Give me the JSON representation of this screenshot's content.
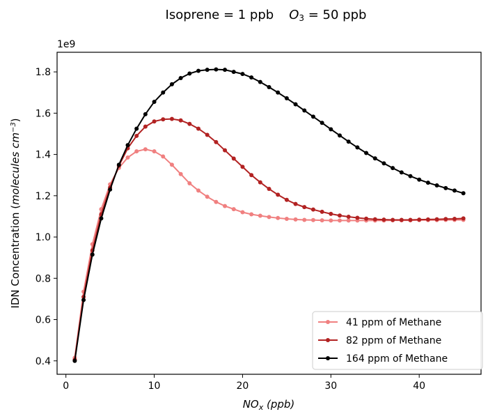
{
  "chart_data": {
    "type": "line",
    "title_parts": {
      "left": "Isoprene = 1 ppb",
      "o3_base": "O",
      "o3_sub": "3",
      "right": " = 50 ppb"
    },
    "xlabel_parts": {
      "base": "NO",
      "sub": "x",
      "rest": " (ppb)"
    },
    "ylabel_parts": {
      "plain": "IDN Concentration (",
      "italic": "molecules cm",
      "sup": "−3",
      "close": ")"
    },
    "y_multiplier_label": "1e9",
    "xlim": [
      -1,
      47
    ],
    "ylim": [
      0.335,
      1.895
    ],
    "x_ticks": [
      0,
      10,
      20,
      30,
      40
    ],
    "x_tick_labels": [
      "0",
      "10",
      "20",
      "30",
      "40"
    ],
    "y_ticks": [
      0.4,
      0.6,
      0.8,
      1.0,
      1.2,
      1.4,
      1.6,
      1.8
    ],
    "y_tick_labels": [
      "0.4",
      "0.6",
      "0.8",
      "1.0",
      "1.2",
      "1.4",
      "1.6",
      "1.8"
    ],
    "grid": false,
    "legend_position": "bottom-right",
    "x": [
      1,
      2,
      3,
      4,
      5,
      6,
      7,
      8,
      9,
      10,
      11,
      12,
      13,
      14,
      15,
      16,
      17,
      18,
      19,
      20,
      21,
      22,
      23,
      24,
      25,
      26,
      27,
      28,
      29,
      30,
      31,
      32,
      33,
      34,
      35,
      36,
      37,
      38,
      39,
      40,
      41,
      42,
      43,
      44,
      45
    ],
    "series": [
      {
        "name": "41 ppm of Methane",
        "color": "#f08080",
        "values": [
          0.415,
          0.735,
          0.965,
          1.135,
          1.255,
          1.335,
          1.385,
          1.415,
          1.425,
          1.415,
          1.39,
          1.35,
          1.305,
          1.26,
          1.225,
          1.195,
          1.17,
          1.15,
          1.135,
          1.12,
          1.11,
          1.103,
          1.097,
          1.092,
          1.088,
          1.085,
          1.083,
          1.082,
          1.081,
          1.08,
          1.08,
          1.08,
          1.08,
          1.08,
          1.08,
          1.08,
          1.081,
          1.081,
          1.081,
          1.082,
          1.082,
          1.082,
          1.083,
          1.083,
          1.083
        ]
      },
      {
        "name": "82 ppm of Methane",
        "color": "#b22222",
        "values": [
          0.405,
          0.71,
          0.935,
          1.11,
          1.24,
          1.345,
          1.43,
          1.49,
          1.535,
          1.56,
          1.57,
          1.572,
          1.565,
          1.548,
          1.525,
          1.495,
          1.46,
          1.42,
          1.38,
          1.34,
          1.3,
          1.265,
          1.233,
          1.205,
          1.18,
          1.16,
          1.145,
          1.133,
          1.122,
          1.112,
          1.104,
          1.098,
          1.093,
          1.089,
          1.086,
          1.084,
          1.083,
          1.083,
          1.083,
          1.084,
          1.085,
          1.086,
          1.087,
          1.088,
          1.09
        ]
      },
      {
        "name": "164 ppm of Methane",
        "color": "#000000",
        "values": [
          0.4,
          0.695,
          0.915,
          1.09,
          1.23,
          1.35,
          1.445,
          1.525,
          1.595,
          1.655,
          1.7,
          1.74,
          1.77,
          1.792,
          1.805,
          1.81,
          1.812,
          1.81,
          1.8,
          1.79,
          1.773,
          1.751,
          1.726,
          1.7,
          1.672,
          1.643,
          1.613,
          1.583,
          1.553,
          1.522,
          1.492,
          1.462,
          1.434,
          1.407,
          1.381,
          1.357,
          1.334,
          1.313,
          1.295,
          1.278,
          1.263,
          1.25,
          1.237,
          1.225,
          1.212
        ]
      }
    ]
  }
}
